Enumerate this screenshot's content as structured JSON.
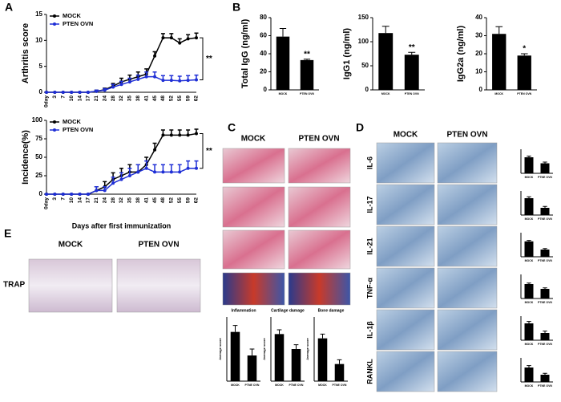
{
  "panel_labels": [
    "A",
    "B",
    "C",
    "D",
    "E"
  ],
  "chart_data": [
    {
      "type": "line",
      "ylabel": "Arthritis score",
      "categories": [
        "0day",
        "3",
        "7",
        "10",
        "14",
        "17",
        "21",
        "24",
        "28",
        "32",
        "35",
        "38",
        "41",
        "45",
        "48",
        "52",
        "55",
        "59",
        "62"
      ],
      "ylim": [
        0,
        15
      ],
      "yticks": [
        0,
        5,
        10,
        15
      ],
      "annotation": "**",
      "series": [
        {
          "name": "MOCK",
          "color": "#000000",
          "values": [
            0,
            0,
            0,
            0,
            0,
            0,
            0.2,
            0.5,
            1.2,
            2,
            2.5,
            3,
            3.5,
            7,
            10.5,
            10.5,
            9.5,
            10.3,
            10.5
          ],
          "errors": [
            0,
            0,
            0,
            0,
            0,
            0,
            0.2,
            0.3,
            0.5,
            0.7,
            0.8,
            0.9,
            1,
            0.8,
            0.8,
            0.8,
            0.8,
            0.8,
            0.9
          ]
        },
        {
          "name": "PTEN OVN",
          "color": "#1f2fd6",
          "values": [
            0,
            0,
            0,
            0,
            0,
            0,
            0.2,
            0.4,
            1,
            1.5,
            2,
            2.5,
            3,
            3,
            2.3,
            2.3,
            2.2,
            2.3,
            2.4
          ],
          "errors": [
            0,
            0,
            0,
            0,
            0,
            0,
            0.2,
            0.3,
            0.5,
            0.6,
            0.7,
            0.8,
            0.9,
            0.9,
            0.9,
            0.9,
            0.9,
            0.9,
            0.9
          ]
        }
      ]
    },
    {
      "type": "line",
      "ylabel": "Incidence(%)",
      "xlabel": "Days after first immunization",
      "categories": [
        "0day",
        "3",
        "7",
        "10",
        "14",
        "17",
        "21",
        "24",
        "28",
        "32",
        "35",
        "38",
        "41",
        "45",
        "48",
        "52",
        "55",
        "59",
        "62"
      ],
      "ylim": [
        0,
        100
      ],
      "yticks": [
        0,
        25,
        50,
        75,
        100
      ],
      "annotation": "**",
      "series": [
        {
          "name": "MOCK",
          "color": "#000000",
          "values": [
            0,
            0,
            0,
            0,
            0,
            0,
            5,
            10,
            20,
            25,
            30,
            30,
            40,
            60,
            80,
            80,
            80,
            80,
            82
          ],
          "errors": [
            0,
            0,
            0,
            0,
            0,
            0,
            5,
            7,
            9,
            10,
            10,
            10,
            10,
            9,
            7,
            7,
            7,
            7,
            6
          ]
        },
        {
          "name": "PTEN OVN",
          "color": "#1f2fd6",
          "values": [
            0,
            0,
            0,
            0,
            0,
            0,
            5,
            5,
            15,
            20,
            25,
            30,
            35,
            30,
            30,
            30,
            30,
            35,
            35
          ],
          "errors": [
            0,
            0,
            0,
            0,
            0,
            0,
            5,
            5,
            8,
            9,
            10,
            10,
            10,
            10,
            10,
            10,
            10,
            10,
            10
          ]
        }
      ]
    },
    {
      "type": "bar",
      "ylabel": "Total IgG (ng/ml)",
      "categories": [
        "MOCK",
        "PTEN OVN"
      ],
      "values": [
        59,
        33
      ],
      "errors": [
        9,
        1
      ],
      "ylim": [
        0,
        80
      ],
      "yticks": [
        0,
        20,
        40,
        60,
        80
      ],
      "annotation": "**",
      "color": "#000000"
    },
    {
      "type": "bar",
      "ylabel": "IgG1 (ng/ml)",
      "categories": [
        "MOCK",
        "PTEN OVN"
      ],
      "values": [
        118,
        73
      ],
      "errors": [
        14,
        5
      ],
      "ylim": [
        0,
        150
      ],
      "yticks": [
        0,
        50,
        100,
        150
      ],
      "annotation": "**",
      "color": "#000000"
    },
    {
      "type": "bar",
      "ylabel": "IgG2a (ng/ml)",
      "categories": [
        "MOCK",
        "PTEN OVN"
      ],
      "values": [
        31,
        19
      ],
      "errors": [
        4,
        1
      ],
      "ylim": [
        0,
        40
      ],
      "yticks": [
        0,
        10,
        20,
        30,
        40
      ],
      "annotation": "*",
      "color": "#000000"
    },
    {
      "type": "bar",
      "title": "Inflammation",
      "ylabel": "Average score",
      "categories": [
        "MOCK",
        "PTNE OVN"
      ],
      "values": [
        2.3,
        1.2
      ],
      "errors": [
        0.3,
        0.3
      ],
      "ylim": [
        0,
        3
      ],
      "color": "#000000"
    },
    {
      "type": "bar",
      "title": "Cartilage damage",
      "ylabel": "Average score",
      "categories": [
        "MOCK",
        "PTNE OVN"
      ],
      "values": [
        2.2,
        1.5
      ],
      "errors": [
        0.2,
        0.2
      ],
      "ylim": [
        0,
        3
      ],
      "color": "#000000"
    },
    {
      "type": "bar",
      "title": "Bone damage",
      "ylabel": "Average score",
      "categories": [
        "MOCK",
        "PTNE OVN"
      ],
      "values": [
        2.0,
        0.8
      ],
      "errors": [
        0.2,
        0.2
      ],
      "ylim": [
        0,
        3
      ],
      "color": "#000000"
    },
    {
      "type": "bar",
      "categories": [
        "MOCK",
        "PTNE OVN"
      ],
      "values": [
        4,
        2.5
      ],
      "errors": [
        0.3,
        0.3
      ],
      "ylim": [
        0,
        6
      ],
      "color": "#000000"
    },
    {
      "type": "bar",
      "categories": [
        "MOCK",
        "PTNE OVN"
      ],
      "values": [
        3.5,
        1.5
      ],
      "errors": [
        0.3,
        0.3
      ],
      "ylim": [
        0,
        5
      ],
      "color": "#000000"
    },
    {
      "type": "bar",
      "categories": [
        "MOCK",
        "PTNE OVN"
      ],
      "values": [
        3.2,
        1.5
      ],
      "errors": [
        0.2,
        0.2
      ],
      "ylim": [
        0,
        5
      ],
      "color": "#000000"
    },
    {
      "type": "bar",
      "categories": [
        "MOCK",
        "PTNE OVN"
      ],
      "values": [
        3,
        2
      ],
      "errors": [
        0.2,
        0.2
      ],
      "ylim": [
        0,
        5
      ],
      "color": "#000000"
    },
    {
      "type": "bar",
      "categories": [
        "MOCK",
        "PTNE OVN"
      ],
      "values": [
        3.5,
        1.5
      ],
      "errors": [
        0.4,
        0.4
      ],
      "ylim": [
        0,
        5
      ],
      "color": "#000000"
    },
    {
      "type": "bar",
      "categories": [
        "MOCK",
        "PTNE OVN"
      ],
      "values": [
        3,
        1.5
      ],
      "errors": [
        0.4,
        0.3
      ],
      "ylim": [
        0,
        5
      ],
      "color": "#000000"
    }
  ],
  "panel_c": {
    "columns": [
      "MOCK",
      "PTEN OVN"
    ]
  },
  "panel_d": {
    "columns": [
      "MOCK",
      "PTEN OVN"
    ],
    "rows": [
      "IL-6",
      "IL-17",
      "IL-21",
      "TNF-α",
      "IL-1β",
      "RANKL"
    ]
  },
  "panel_e": {
    "columns": [
      "MOCK",
      "PTEN OVN"
    ],
    "rows": [
      "TRAP"
    ]
  }
}
